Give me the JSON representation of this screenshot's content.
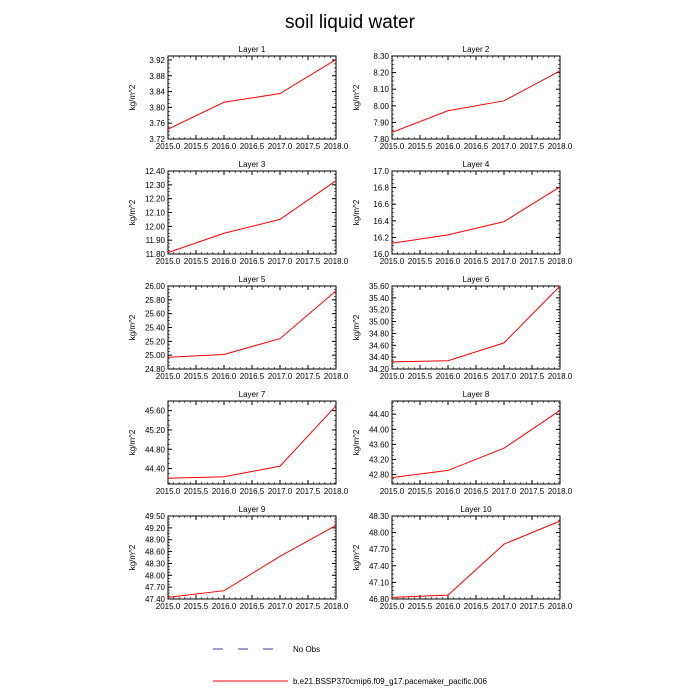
{
  "title": "soil liquid water",
  "colors": {
    "model": "#ff0000",
    "obs": "#3a3aa8",
    "axis": "#000000"
  },
  "legend": [
    {
      "label": "No Obs",
      "style": "dashed",
      "color": "#3a3aa8"
    },
    {
      "label": "b.e21.BSSP370cmip6.f09_g17.pacemaker_pacific.006",
      "style": "solid",
      "color": "#ff0000"
    }
  ],
  "chart_data": [
    {
      "type": "line",
      "title": "Layer 1",
      "ylabel": "kg/m^2",
      "x": [
        2015.0,
        2016.0,
        2017.0,
        2018.0
      ],
      "xlim": [
        2015.0,
        2018.0
      ],
      "xticks": [
        "2015.0",
        "2015.5",
        "2016.0",
        "2016.5",
        "2017.0",
        "2017.5",
        "2018.0"
      ],
      "ylim": [
        3.72,
        3.93
      ],
      "yticks": [
        "3.72",
        "3.76",
        "3.80",
        "3.84",
        "3.88",
        "3.92"
      ],
      "series": [
        {
          "name": "b.e21.BSSP370cmip6.f09_g17.pacemaker_pacific.006",
          "values": [
            3.745,
            3.813,
            3.835,
            3.921
          ]
        }
      ]
    },
    {
      "type": "line",
      "title": "Layer 2",
      "ylabel": "kg/m^2",
      "x": [
        2015.0,
        2016.0,
        2017.0,
        2018.0
      ],
      "xlim": [
        2015.0,
        2018.0
      ],
      "xticks": [
        "2015.0",
        "2015.5",
        "2016.0",
        "2016.5",
        "2017.0",
        "2017.5",
        "2018.0"
      ],
      "ylim": [
        7.8,
        8.3
      ],
      "yticks": [
        "7.80",
        "7.90",
        "8.00",
        "8.10",
        "8.20",
        "8.30"
      ],
      "series": [
        {
          "name": "b.e21.BSSP370cmip6.f09_g17.pacemaker_pacific.006",
          "values": [
            7.84,
            7.97,
            8.03,
            8.21
          ]
        }
      ]
    },
    {
      "type": "line",
      "title": "Layer 3",
      "ylabel": "kg/m^2",
      "x": [
        2015.0,
        2016.0,
        2017.0,
        2018.0
      ],
      "xlim": [
        2015.0,
        2018.0
      ],
      "xticks": [
        "2015.0",
        "2015.5",
        "2016.0",
        "2016.5",
        "2017.0",
        "2017.5",
        "2018.0"
      ],
      "ylim": [
        11.8,
        12.4
      ],
      "yticks": [
        "11.80",
        "11.90",
        "12.00",
        "12.10",
        "12.20",
        "12.30",
        "12.40"
      ],
      "series": [
        {
          "name": "b.e21.BSSP370cmip6.f09_g17.pacemaker_pacific.006",
          "values": [
            11.81,
            11.95,
            12.05,
            12.33
          ]
        }
      ]
    },
    {
      "type": "line",
      "title": "Layer 4",
      "ylabel": "kg/m^2",
      "x": [
        2015.0,
        2016.0,
        2017.0,
        2018.0
      ],
      "xlim": [
        2015.0,
        2018.0
      ],
      "xticks": [
        "2015.0",
        "2015.5",
        "2016.0",
        "2016.5",
        "2017.0",
        "2017.5",
        "2018.0"
      ],
      "ylim": [
        16.0,
        17.0
      ],
      "yticks": [
        "16.0",
        "16.2",
        "16.4",
        "16.6",
        "16.8",
        "17.0"
      ],
      "series": [
        {
          "name": "b.e21.BSSP370cmip6.f09_g17.pacemaker_pacific.006",
          "values": [
            16.13,
            16.23,
            16.39,
            16.81
          ]
        }
      ]
    },
    {
      "type": "line",
      "title": "Layer 5",
      "ylabel": "kg/m^2",
      "x": [
        2015.0,
        2016.0,
        2017.0,
        2018.0
      ],
      "xlim": [
        2015.0,
        2018.0
      ],
      "xticks": [
        "2015.0",
        "2015.5",
        "2016.0",
        "2016.5",
        "2017.0",
        "2017.5",
        "2018.0"
      ],
      "ylim": [
        24.8,
        26.0
      ],
      "yticks": [
        "24.80",
        "25.00",
        "25.20",
        "25.40",
        "25.60",
        "25.80",
        "26.00"
      ],
      "series": [
        {
          "name": "b.e21.BSSP370cmip6.f09_g17.pacemaker_pacific.006",
          "values": [
            24.97,
            25.01,
            25.24,
            25.93
          ]
        }
      ]
    },
    {
      "type": "line",
      "title": "Layer 6",
      "ylabel": "kg/m^2",
      "x": [
        2015.0,
        2016.0,
        2017.0,
        2018.0
      ],
      "xlim": [
        2015.0,
        2018.0
      ],
      "xticks": [
        "2015.0",
        "2015.5",
        "2016.0",
        "2016.5",
        "2017.0",
        "2017.5",
        "2018.0"
      ],
      "ylim": [
        34.2,
        35.6
      ],
      "yticks": [
        "34.20",
        "34.40",
        "34.60",
        "34.80",
        "35.00",
        "35.20",
        "35.40",
        "35.60"
      ],
      "series": [
        {
          "name": "b.e21.BSSP370cmip6.f09_g17.pacemaker_pacific.006",
          "values": [
            34.32,
            34.34,
            34.64,
            35.6
          ]
        }
      ]
    },
    {
      "type": "line",
      "title": "Layer 7",
      "ylabel": "kg/m^2",
      "x": [
        2015.0,
        2016.0,
        2017.0,
        2018.0
      ],
      "xlim": [
        2015.0,
        2018.0
      ],
      "xticks": [
        "2015.0",
        "2015.5",
        "2016.0",
        "2016.5",
        "2017.0",
        "2017.5",
        "2018.0"
      ],
      "ylim": [
        44.08,
        45.8
      ],
      "yticks": [
        "44.40",
        "44.80",
        "45.20",
        "45.60"
      ],
      "series": [
        {
          "name": "b.e21.BSSP370cmip6.f09_g17.pacemaker_pacific.006",
          "values": [
            44.2,
            44.23,
            44.45,
            45.7
          ]
        }
      ]
    },
    {
      "type": "line",
      "title": "Layer 8",
      "ylabel": "kg/m^2",
      "x": [
        2015.0,
        2016.0,
        2017.0,
        2018.0
      ],
      "xlim": [
        2015.0,
        2018.0
      ],
      "xticks": [
        "2015.0",
        "2015.5",
        "2016.0",
        "2016.5",
        "2017.0",
        "2017.5",
        "2018.0"
      ],
      "ylim": [
        42.55,
        44.75
      ],
      "yticks": [
        "42.80",
        "43.20",
        "43.60",
        "44.00",
        "44.40"
      ],
      "series": [
        {
          "name": "b.e21.BSSP370cmip6.f09_g17.pacemaker_pacific.006",
          "values": [
            42.72,
            42.91,
            43.5,
            44.5
          ]
        }
      ]
    },
    {
      "type": "line",
      "title": "Layer 9",
      "ylabel": "kg/m^2",
      "x": [
        2015.0,
        2016.0,
        2017.0,
        2018.0
      ],
      "xlim": [
        2015.0,
        2018.0
      ],
      "xticks": [
        "2015.0",
        "2015.5",
        "2016.0",
        "2016.5",
        "2017.0",
        "2017.5",
        "2018.0"
      ],
      "ylim": [
        47.4,
        49.5
      ],
      "yticks": [
        "47.40",
        "47.70",
        "48.00",
        "48.30",
        "48.60",
        "48.90",
        "49.20",
        "49.50"
      ],
      "series": [
        {
          "name": "b.e21.BSSP370cmip6.f09_g17.pacemaker_pacific.006",
          "values": [
            47.44,
            47.61,
            48.48,
            49.26
          ]
        }
      ]
    },
    {
      "type": "line",
      "title": "Layer 10",
      "ylabel": "kg/m^2",
      "x": [
        2015.0,
        2016.0,
        2017.0,
        2018.0
      ],
      "xlim": [
        2015.0,
        2018.0
      ],
      "xticks": [
        "2015.0",
        "2015.5",
        "2016.0",
        "2016.5",
        "2017.0",
        "2017.5",
        "2018.0"
      ],
      "ylim": [
        46.8,
        48.3
      ],
      "yticks": [
        "46.80",
        "47.10",
        "47.40",
        "47.70",
        "48.00",
        "48.30"
      ],
      "series": [
        {
          "name": "b.e21.BSSP370cmip6.f09_g17.pacemaker_pacific.006",
          "values": [
            46.83,
            46.87,
            47.79,
            48.21
          ]
        }
      ]
    }
  ]
}
